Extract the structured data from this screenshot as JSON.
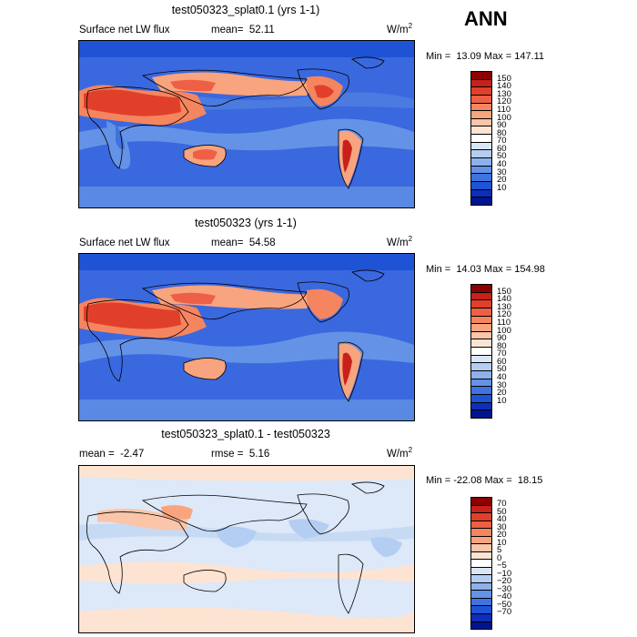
{
  "season": "ANN",
  "panels": [
    {
      "title": "test050323_splat0.1 (yrs 1-1)",
      "left_text": "Surface net LW flux",
      "stat_text": "mean=  52.11",
      "units": "W/m",
      "units_exp": "2",
      "minmax": "Min =  13.09 Max = 147.11",
      "colorbar_labels": [
        "150",
        "140",
        "130",
        "120",
        "110",
        "100",
        "90",
        "80",
        "70",
        "60",
        "50",
        "40",
        "30",
        "20",
        "10"
      ],
      "colorbar_colors": [
        "#8b0000",
        "#c8201a",
        "#e0402a",
        "#ee6045",
        "#f5855f",
        "#f8a47e",
        "#fac5a8",
        "#fde4d2",
        "#ffffff",
        "#d8e6f8",
        "#b4cdf2",
        "#8cb1ec",
        "#6492e6",
        "#3f73df",
        "#1f53d6",
        "#0c2eb8",
        "#001490"
      ],
      "background": "#2f5fdc"
    },
    {
      "title": "test050323 (yrs 1-1)",
      "left_text": "Surface net LW flux",
      "stat_text": "mean=  54.58",
      "units": "W/m",
      "units_exp": "2",
      "minmax": "Min =  14.03 Max = 154.98",
      "colorbar_labels": [
        "150",
        "140",
        "130",
        "120",
        "110",
        "100",
        "90",
        "80",
        "70",
        "60",
        "50",
        "40",
        "30",
        "20",
        "10"
      ],
      "colorbar_colors": [
        "#8b0000",
        "#c8201a",
        "#e0402a",
        "#ee6045",
        "#f5855f",
        "#f8a47e",
        "#fac5a8",
        "#fde4d2",
        "#ffffff",
        "#d8e6f8",
        "#b4cdf2",
        "#8cb1ec",
        "#6492e6",
        "#3f73df",
        "#1f53d6",
        "#0c2eb8",
        "#001490"
      ],
      "background": "#2f5fdc"
    },
    {
      "title": "test050323_splat0.1 - test050323",
      "left_text": "mean =  -2.47",
      "stat_text": "rmse =  5.16",
      "units": "W/m",
      "units_exp": "2",
      "minmax": "Min = -22.08 Max =  18.15",
      "colorbar_labels": [
        "70",
        "50",
        "40",
        "30",
        "20",
        "10",
        "5",
        "0",
        "−5",
        "−10",
        "−20",
        "−30",
        "−40",
        "−50",
        "−70"
      ],
      "colorbar_colors": [
        "#8b0000",
        "#c8201a",
        "#e0402a",
        "#ee6045",
        "#f5855f",
        "#f8a47e",
        "#fac5a8",
        "#fde4d2",
        "#ffffff",
        "#d8e6f8",
        "#b4cdf2",
        "#8cb1ec",
        "#6492e6",
        "#3f73df",
        "#1f53d6",
        "#0c2eb8",
        "#001490"
      ],
      "background": "#dde8f8"
    }
  ]
}
